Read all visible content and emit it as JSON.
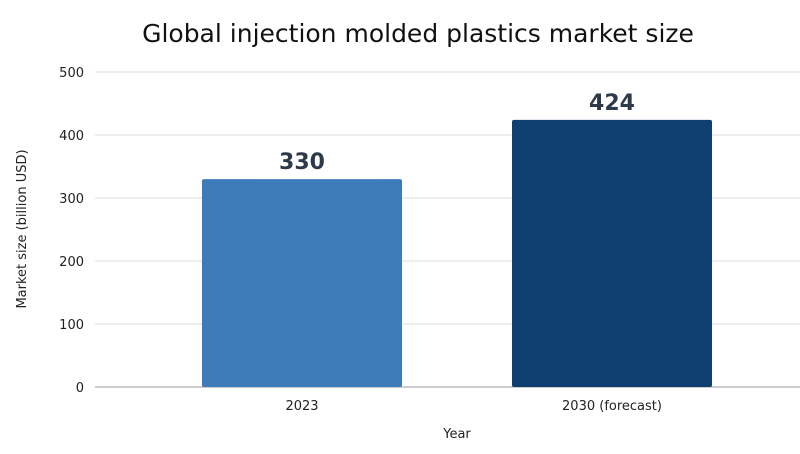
{
  "chart_data": {
    "type": "bar",
    "title": "Global injection molded plastics market size",
    "xlabel": "Year",
    "ylabel": "Market size (billion USD)",
    "categories": [
      "2023",
      "2030 (forecast)"
    ],
    "values": [
      330,
      424
    ],
    "data_labels": [
      "330",
      "424"
    ],
    "ylim": [
      0,
      500
    ],
    "yticks": [
      0,
      100,
      200,
      300,
      400,
      500
    ],
    "grid": true,
    "legend": "none",
    "colors": [
      "#3d7bb9",
      "#0f3f70"
    ]
  }
}
